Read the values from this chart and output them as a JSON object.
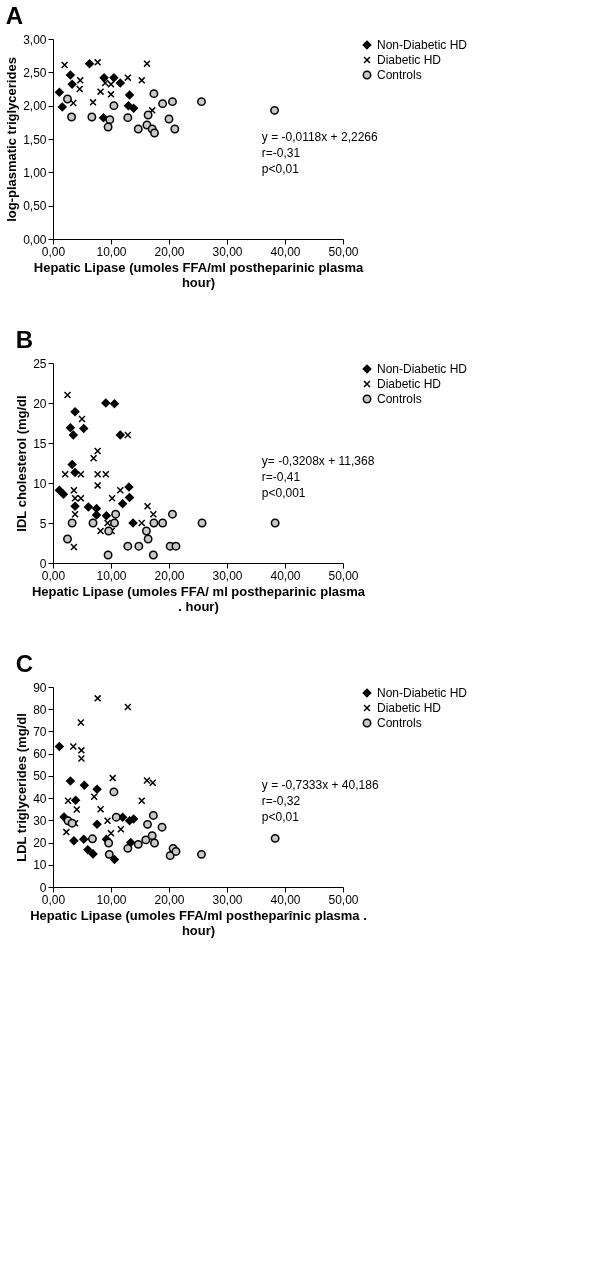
{
  "chart_data": [
    {
      "type": "scatter",
      "title": "A",
      "xlabel": "Hepatic Lipase (umoles FFA/ml postheparinic plasma hour)",
      "ylabel": "log-plasmatic triglycerides",
      "xlim": [
        0,
        50
      ],
      "xticks": [
        {
          "value": 0,
          "label": "0,00"
        },
        {
          "value": 10,
          "label": "10,00"
        },
        {
          "value": 20,
          "label": "20,00"
        },
        {
          "value": 30,
          "label": "30,00"
        },
        {
          "value": 40,
          "label": "40,00"
        },
        {
          "value": 50,
          "label": "50,00"
        }
      ],
      "ylim": [
        0,
        3
      ],
      "yticks": [
        {
          "value": 0,
          "label": "0,00"
        },
        {
          "value": 0.5,
          "label": "0,50"
        },
        {
          "value": 1,
          "label": "1,00"
        },
        {
          "value": 1.5,
          "label": "1,50"
        },
        {
          "value": 2,
          "label": "2,00"
        },
        {
          "value": 2.5,
          "label": "2,50"
        },
        {
          "value": 3,
          "label": "3,00"
        }
      ],
      "grid": false,
      "legend": "top right",
      "annotations": [
        "y = -0,0118x + 2,2266",
        "r=-0,31",
        "p<0,01"
      ],
      "series": [
        {
          "name": "Non-Diabetic HD",
          "color": "#000000",
          "marker": "diamond",
          "x": [
            1.1,
            3.0,
            3.3,
            1.6,
            6.3,
            8.8,
            10.5,
            8.7,
            13.2,
            13.0,
            13.9,
            11.6
          ],
          "values": [
            2.2,
            2.46,
            2.32,
            1.98,
            2.63,
            2.42,
            2.42,
            1.82,
            2.16,
            2.0,
            1.96,
            2.34
          ]
        },
        {
          "name": "Diabetic HD",
          "color": "#000000",
          "marker": "cross",
          "x": [
            2.0,
            7.7,
            16.2,
            4.7,
            4.6,
            3.5,
            6.9,
            8.2,
            10.0,
            12.9,
            15.3,
            17.1,
            9.0,
            10.0
          ],
          "values": [
            2.61,
            2.65,
            2.63,
            2.38,
            2.25,
            2.04,
            2.05,
            2.21,
            2.32,
            2.42,
            2.38,
            1.93,
            2.34,
            2.17
          ]
        },
        {
          "name": "Controls",
          "color": "#000000",
          "marker": "circle",
          "x": [
            2.5,
            3.2,
            6.7,
            9.8,
            9.5,
            10.5,
            12.9,
            14.7,
            16.2,
            16.4,
            17.1,
            17.5,
            17.4,
            18.9,
            20.6,
            20.0,
            21.0,
            25.6,
            38.2
          ],
          "values": [
            2.1,
            1.83,
            1.83,
            1.79,
            1.68,
            2.0,
            1.82,
            1.65,
            1.71,
            1.86,
            1.65,
            1.59,
            2.18,
            2.03,
            2.06,
            1.8,
            1.65,
            2.06,
            1.93
          ]
        }
      ]
    },
    {
      "type": "scatter",
      "title": "B",
      "xlabel": "Hepatic Lipase (umoles FFA/ ml postheparinic plasma . hour)",
      "ylabel": "IDL cholesterol (mg/dl",
      "xlim": [
        0,
        50
      ],
      "xticks": [
        {
          "value": 0,
          "label": "0,00"
        },
        {
          "value": 10,
          "label": "10,00"
        },
        {
          "value": 20,
          "label": "20,00"
        },
        {
          "value": 30,
          "label": "30,00"
        },
        {
          "value": 40,
          "label": "40,00"
        },
        {
          "value": 50,
          "label": "50,00"
        }
      ],
      "ylim": [
        0,
        25
      ],
      "yticks": [
        0,
        5,
        10,
        15,
        20,
        25
      ],
      "grid": false,
      "legend": "top right",
      "annotations": [
        "y= -0,3208x + 11,368",
        "r=-0,41",
        "p<0,001"
      ],
      "series": [
        {
          "name": "Non-Diabetic HD",
          "color": "#000000",
          "marker": "diamond",
          "x": [
            1.1,
            1.8,
            3.0,
            3.5,
            3.8,
            3.3,
            3.8,
            5.3,
            6.1,
            7.5,
            7.5,
            9.1,
            10.6,
            11.6,
            12.0,
            13.1,
            13.2,
            13.8,
            9.2,
            3.8
          ],
          "values": [
            9.1,
            8.6,
            16.9,
            16.0,
            18.9,
            12.3,
            11.3,
            16.8,
            7.0,
            6.8,
            6.0,
            20.0,
            19.9,
            16.0,
            7.4,
            9.5,
            8.2,
            5.0,
            5.9,
            7.1
          ]
        },
        {
          "name": "Diabetic HD",
          "color": "#000000",
          "marker": "cross",
          "x": [
            2.5,
            2.1,
            5.0,
            12.9,
            7.7,
            7.0,
            4.8,
            7.7,
            9.1,
            7.7,
            3.6,
            3.8,
            4.8,
            10.2,
            11.6,
            3.8,
            16.3,
            17.3,
            15.3,
            9.4,
            8.2,
            10.1,
            3.6
          ],
          "values": [
            21.0,
            11.1,
            18.0,
            16.0,
            14.0,
            13.1,
            11.1,
            11.1,
            11.1,
            9.7,
            9.1,
            8.1,
            8.1,
            8.1,
            9.1,
            6.1,
            7.1,
            6.1,
            5.0,
            5.0,
            4.0,
            4.0,
            2.0
          ]
        },
        {
          "name": "Controls",
          "color": "#000000",
          "marker": "circle",
          "x": [
            2.5,
            3.3,
            6.9,
            9.6,
            9.5,
            10.6,
            10.8,
            12.9,
            14.8,
            16.1,
            16.4,
            17.4,
            17.3,
            18.9,
            20.6,
            20.2,
            21.2,
            25.7,
            38.3
          ],
          "values": [
            3.0,
            5.0,
            5.0,
            4.0,
            1.0,
            5.0,
            6.1,
            2.1,
            2.1,
            4.0,
            3.0,
            5.0,
            1.0,
            5.0,
            6.1,
            2.1,
            2.1,
            5.0,
            5.0
          ]
        }
      ]
    },
    {
      "type": "scatter",
      "title": "C",
      "xlabel": "Hepatic Lipase (umoles FFA/ml postheparînic plasma . hour)",
      "ylabel": "LDL triglycerides (mg/dl",
      "xlim": [
        0,
        50
      ],
      "xticks": [
        {
          "value": 0,
          "label": "0,00"
        },
        {
          "value": 10,
          "label": "10,00"
        },
        {
          "value": 20,
          "label": "20,00"
        },
        {
          "value": 30,
          "label": "30,00"
        },
        {
          "value": 40,
          "label": "40,00"
        },
        {
          "value": 50,
          "label": "50,00"
        }
      ],
      "ylim": [
        0,
        90
      ],
      "yticks": [
        0,
        10,
        20,
        30,
        40,
        50,
        60,
        70,
        80,
        90
      ],
      "grid": false,
      "legend": "top right",
      "annotations": [
        "y = -0,7333x + 40,186",
        "r=-0,32",
        "p<0,01"
      ],
      "series": [
        {
          "name": "Non-Diabetic HD",
          "color": "#000000",
          "marker": "diamond",
          "x": [
            1.1,
            3.0,
            1.9,
            3.6,
            5.4,
            5.3,
            6.0,
            6.9,
            7.6,
            7.6,
            9.2,
            10.6,
            12.0,
            13.2,
            13.9,
            13.4,
            3.9
          ],
          "values": [
            63.2,
            47.7,
            31.5,
            20.8,
            45.8,
            21.5,
            16.8,
            14.9,
            28.2,
            44.0,
            21.5,
            12.4,
            31.4,
            29.8,
            30.6,
            20.0,
            39.0
          ]
        },
        {
          "name": "Diabetic HD",
          "color": "#000000",
          "marker": "cross",
          "x": [
            7.7,
            12.9,
            4.8,
            3.5,
            4.9,
            4.9,
            10.3,
            16.2,
            17.2,
            2.6,
            7.1,
            4.1,
            8.2,
            15.3,
            9.4,
            3.8,
            2.3,
            10.0,
            11.7
          ],
          "values": [
            84.9,
            81.0,
            74.0,
            63.2,
            61.5,
            57.8,
            49.0,
            47.9,
            46.9,
            38.8,
            40.6,
            34.9,
            35.0,
            38.8,
            29.8,
            28.7,
            24.7,
            24.2,
            26.0
          ]
        },
        {
          "name": "Controls",
          "color": "#000000",
          "marker": "circle",
          "x": [
            2.6,
            3.3,
            6.8,
            9.6,
            9.7,
            10.5,
            10.9,
            12.9,
            14.7,
            16.0,
            16.3,
            17.1,
            17.3,
            17.5,
            18.8,
            20.2,
            20.7,
            21.2,
            25.6,
            38.3
          ],
          "values": [
            29.8,
            28.7,
            21.7,
            19.8,
            14.7,
            42.8,
            31.4,
            17.4,
            19.2,
            21.2,
            28.2,
            23.1,
            32.2,
            19.8,
            26.9,
            14.1,
            17.4,
            16.0,
            14.7,
            21.9
          ]
        }
      ]
    }
  ]
}
